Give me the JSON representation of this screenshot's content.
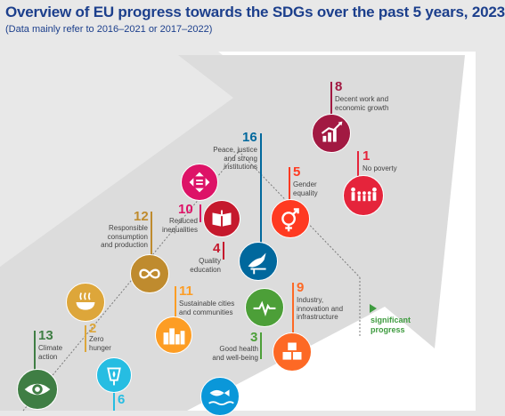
{
  "title": "Overview of EU progress towards the SDGs over the past 5 years, 2023",
  "subtitle": "(Data mainly refer to 2016–2021 or 2017–2022)",
  "legend": {
    "significant_progress": [
      "significant",
      "progress"
    ]
  },
  "colors": {
    "title": "#1c3f8c",
    "sdg1": "#e5243b",
    "sdg2": "#dda63a",
    "sdg3": "#4c9f38",
    "sdg4": "#c5192d",
    "sdg5": "#ff3a21",
    "sdg6": "#26bde2",
    "sdg8": "#a21942",
    "sdg9": "#fd6925",
    "sdg10": "#dd1367",
    "sdg11": "#fd9d24",
    "sdg12": "#bf8b2e",
    "sdg13": "#3f7e44",
    "sdg14": "#0a97d9",
    "sdg16": "#00689d"
  },
  "goals": {
    "g8": {
      "number": "8",
      "label": [
        "Decent work and",
        "economic growth"
      ],
      "icon": "growth-chart-icon"
    },
    "g1": {
      "number": "1",
      "label": [
        "No poverty"
      ],
      "icon": "family-icon"
    },
    "g16": {
      "number": "16",
      "label": [
        "Peace, justice",
        "and strong",
        "institutions"
      ],
      "icon": "dove-icon"
    },
    "g5": {
      "number": "5",
      "label": [
        "Gender",
        "equality"
      ],
      "icon": "gender-symbol-icon"
    },
    "g10": {
      "number": "10",
      "label": [
        "Reduced",
        "inequalities"
      ],
      "icon": "equality-arrows-icon"
    },
    "g12": {
      "number": "12",
      "label": [
        "Responsible",
        "consumption",
        "and production"
      ],
      "icon": "infinity-icon"
    },
    "g4": {
      "number": "4",
      "label": [
        "Quality",
        "education"
      ],
      "icon": "book-icon"
    },
    "g11": {
      "number": "11",
      "label": [
        "Sustainable cities",
        "and communities"
      ],
      "icon": "city-icon"
    },
    "g9": {
      "number": "9",
      "label": [
        "Industry,",
        "innovation and",
        "infrastructure"
      ],
      "icon": "cubes-icon"
    },
    "g3": {
      "number": "3",
      "label": [
        "Good health",
        "and well-being"
      ],
      "icon": "heartbeat-icon"
    },
    "g2": {
      "number": "2",
      "label": [
        "Zero",
        "hunger"
      ],
      "icon": "bowl-icon"
    },
    "g13": {
      "number": "13",
      "label": [
        "Climate",
        "action"
      ],
      "icon": "eye-earth-icon"
    },
    "g6": {
      "number": "6",
      "label": [],
      "icon": "water-drop-icon"
    },
    "g14": {
      "number": "",
      "label": [],
      "icon": "fish-icon"
    }
  }
}
